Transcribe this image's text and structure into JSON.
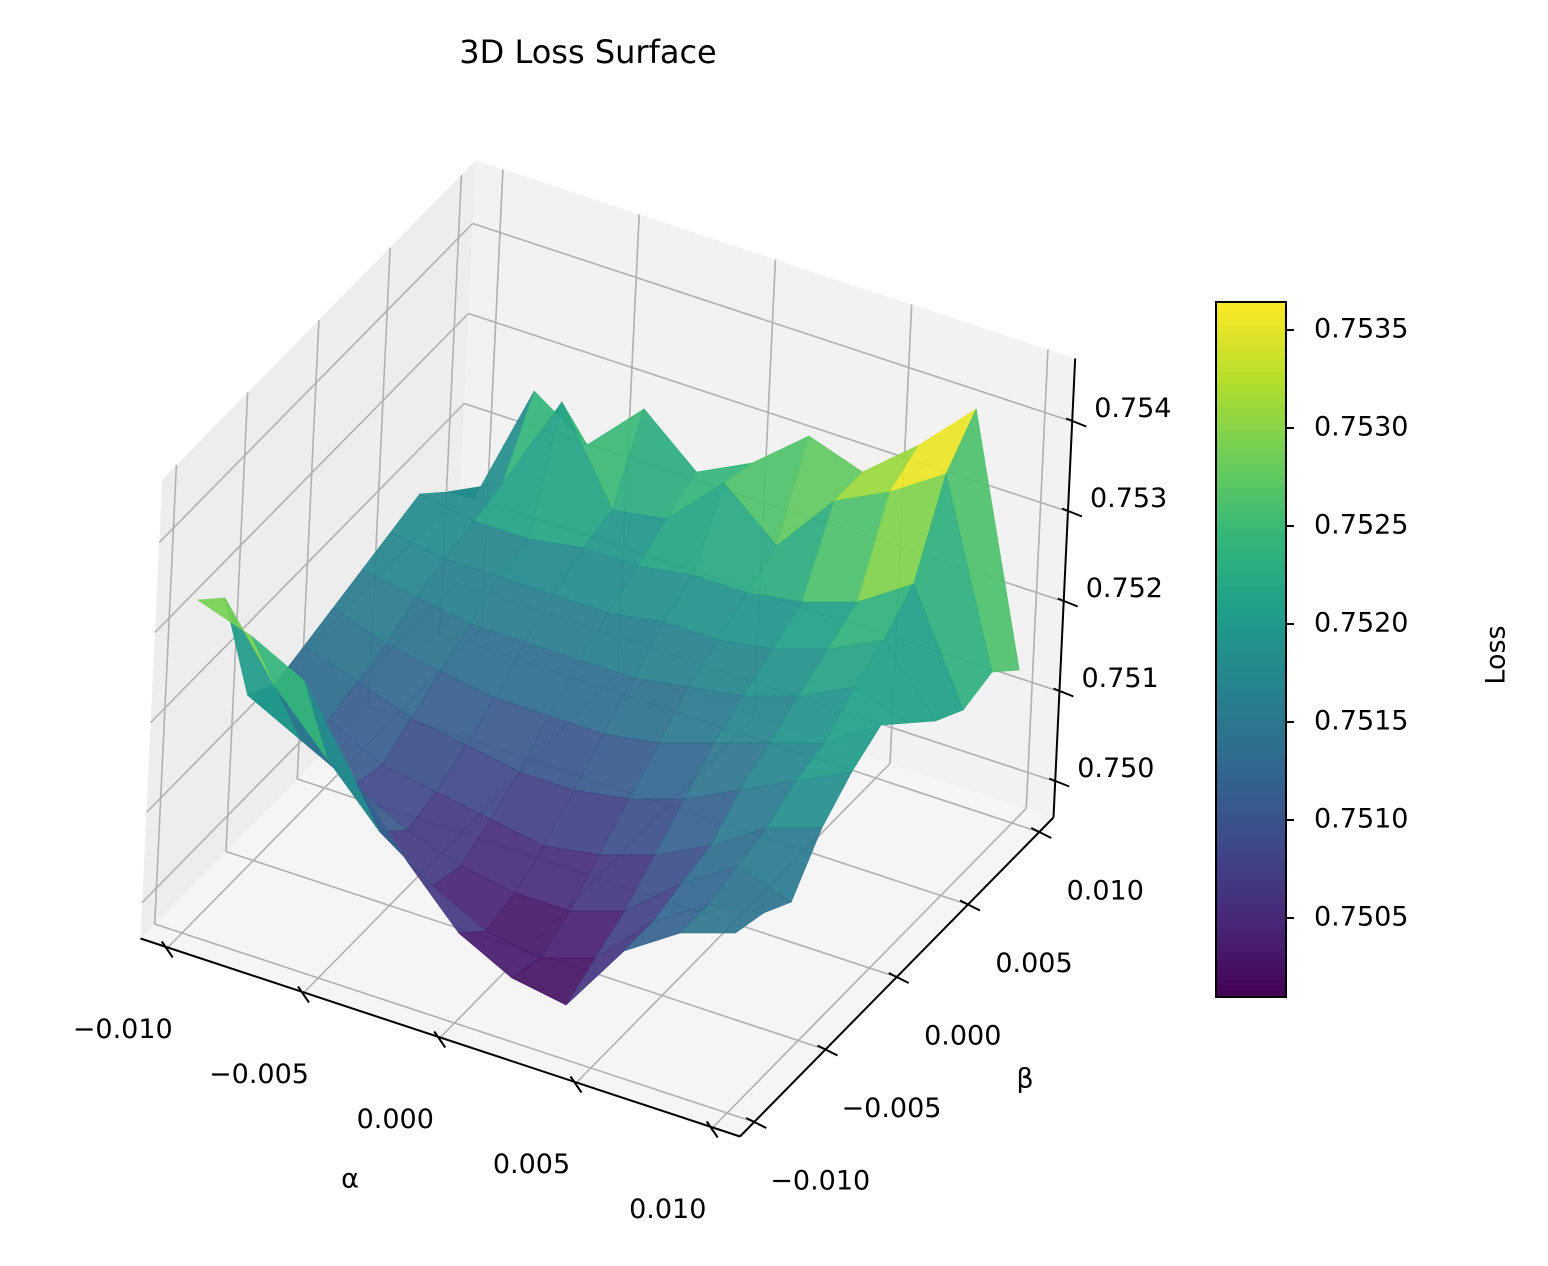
{
  "chart_data": {
    "type": "surface",
    "title": "3D Loss Surface",
    "xlabel": "α",
    "ylabel": "β",
    "zlabel": "Loss",
    "x": [
      -0.01,
      -0.008,
      -0.006,
      -0.004,
      -0.002,
      0,
      0.002,
      0.004,
      0.006,
      0.008,
      0.01
    ],
    "y": [
      -0.01,
      -0.008,
      -0.006,
      -0.004,
      -0.002,
      0,
      0.002,
      0.004,
      0.006,
      0.008,
      0.01
    ],
    "z": [
      [
        0.7533,
        0.7531,
        0.7528,
        0.7519,
        0.7512,
        0.7506,
        0.7503,
        0.7502,
        0.751,
        0.7514,
        0.7516
      ],
      [
        0.753,
        0.7522,
        0.7516,
        0.751,
        0.7506,
        0.7503,
        0.7502,
        0.7504,
        0.751,
        0.7514,
        0.7515
      ],
      [
        0.7516,
        0.7513,
        0.751,
        0.7507,
        0.7505,
        0.7504,
        0.7504,
        0.7506,
        0.7511,
        0.7515,
        0.7513
      ],
      [
        0.7514,
        0.7512,
        0.7509,
        0.7508,
        0.7507,
        0.7506,
        0.7507,
        0.7509,
        0.7512,
        0.7516,
        0.7518
      ],
      [
        0.7515,
        0.7513,
        0.7511,
        0.751,
        0.7509,
        0.7509,
        0.751,
        0.7512,
        0.7515,
        0.7518,
        0.7521
      ],
      [
        0.7516,
        0.7514,
        0.7513,
        0.7512,
        0.7512,
        0.7512,
        0.7513,
        0.7515,
        0.7517,
        0.7519,
        0.7523
      ],
      [
        0.7517,
        0.7516,
        0.7515,
        0.7515,
        0.7515,
        0.7515,
        0.7516,
        0.7517,
        0.7519,
        0.7522,
        0.752
      ],
      [
        0.7518,
        0.7517,
        0.7517,
        0.7517,
        0.7517,
        0.7518,
        0.7518,
        0.7519,
        0.7521,
        0.7524,
        0.7517
      ],
      [
        0.7519,
        0.7518,
        0.7518,
        0.7519,
        0.7519,
        0.752,
        0.752,
        0.7521,
        0.7523,
        0.7527,
        0.7515
      ],
      [
        0.7516,
        0.7519,
        0.753,
        0.752,
        0.7521,
        0.7527,
        0.7522,
        0.7529,
        0.7532,
        0.7536,
        0.7516
      ],
      [
        0.7512,
        0.7526,
        0.7522,
        0.7528,
        0.7523,
        0.7526,
        0.7531,
        0.7529,
        0.7534,
        0.754,
        0.7513
      ]
    ],
    "xlim": [
      -0.011,
      0.011
    ],
    "ylim": [
      -0.011,
      0.011
    ],
    "zlim": [
      0.7496,
      0.7547
    ],
    "xticks": [
      {
        "value": -0.01,
        "label": "−0.010"
      },
      {
        "value": -0.005,
        "label": "−0.005"
      },
      {
        "value": 0,
        "label": "0.000"
      },
      0.005,
      {
        "value": 0.01,
        "label": "0.010"
      }
    ],
    "yticks": [
      {
        "value": -0.01,
        "label": "−0.010"
      },
      {
        "value": -0.005,
        "label": "−0.005"
      },
      {
        "value": 0,
        "label": "0.000"
      },
      0.005,
      {
        "value": 0.01,
        "label": "0.010"
      }
    ],
    "zticks": [
      {
        "value": 0.75,
        "label": "0.750"
      },
      {
        "value": 0.751,
        "label": "0.751"
      },
      {
        "value": 0.752,
        "label": "0.752"
      },
      {
        "value": 0.753,
        "label": "0.753"
      },
      {
        "value": 0.754,
        "label": "0.754"
      }
    ],
    "colormap": "viridis",
    "grid": true,
    "colorbar": {
      "label": "Loss",
      "lim": [
        0.750097,
        0.753643
      ],
      "ticks": [
        0.7505,
        {
          "value": 0.751,
          "label": "0.7510"
        },
        0.7515,
        {
          "value": 0.752,
          "label": "0.7520"
        },
        0.7525,
        {
          "value": 0.753,
          "label": "0.7530"
        },
        0.7535
      ]
    }
  }
}
